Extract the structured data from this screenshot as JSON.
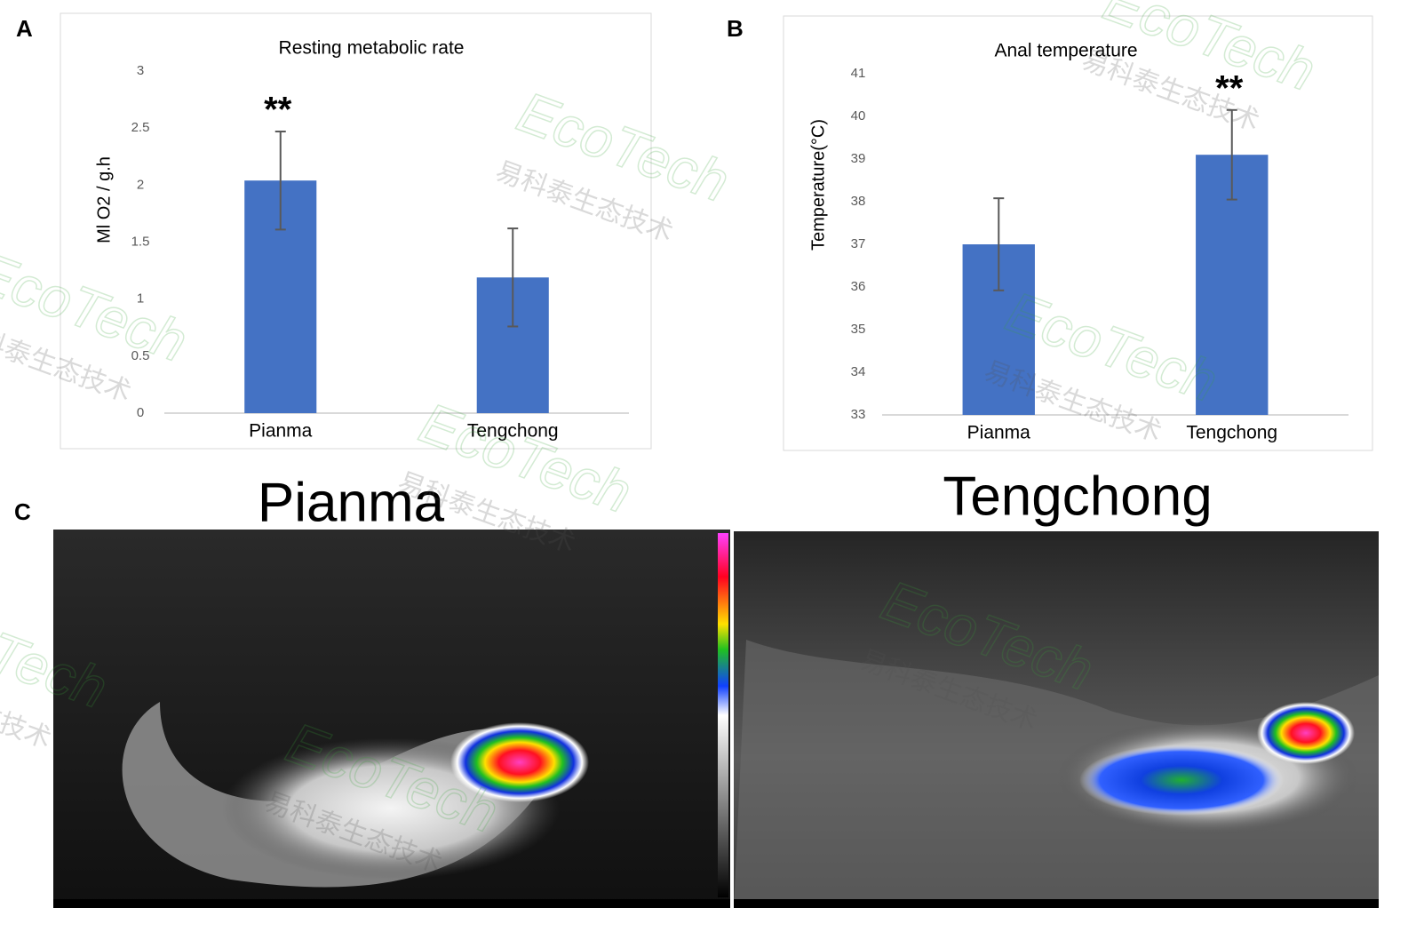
{
  "panel_labels": [
    "A",
    "B",
    "C"
  ],
  "chart_data": [
    {
      "type": "bar",
      "title": "Resting metabolic rate",
      "y_label": "Ml O2 / g.h",
      "categories": [
        "Pianma",
        "Tengchong"
      ],
      "values": [
        2.04,
        1.19
      ],
      "errors": [
        0.43,
        0.43
      ],
      "annotations": [
        "**",
        null
      ],
      "color": "#4472c4",
      "ylim": [
        0,
        3
      ],
      "yticks": [
        0,
        0.5,
        1,
        1.5,
        2,
        2.5,
        3
      ]
    },
    {
      "type": "bar",
      "title": "Anal temperature",
      "y_label": "Temperature(°C)",
      "categories": [
        "Pianma",
        "Tengchong"
      ],
      "values": [
        37.0,
        39.1
      ],
      "errors": [
        1.08,
        1.05
      ],
      "annotations": [
        null,
        "**"
      ],
      "color": "#4472c4",
      "ylim": [
        33,
        41
      ],
      "yticks": [
        33,
        34,
        35,
        36,
        37,
        38,
        39,
        40,
        41
      ]
    }
  ],
  "thermal_images": {
    "titles": [
      "Pianma",
      "Tengchong"
    ]
  },
  "watermark": {
    "brand": "EcoTech",
    "text": "易科泰生态技术"
  }
}
